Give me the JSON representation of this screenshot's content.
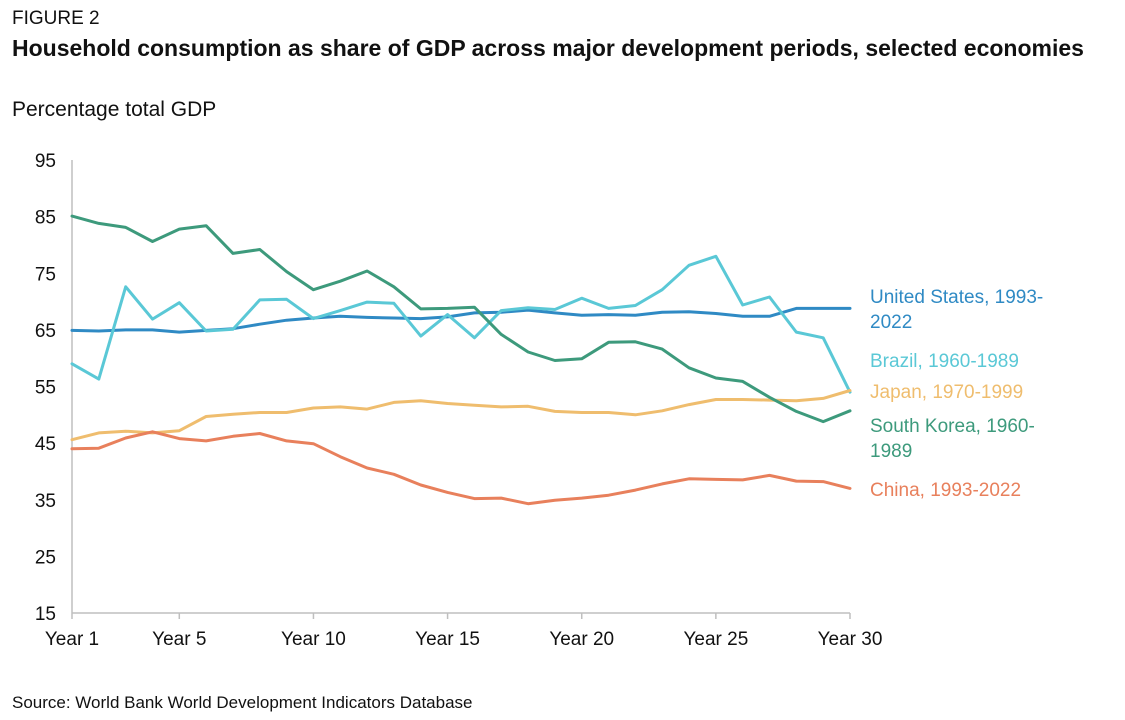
{
  "header": {
    "figure_label": "FIGURE 2",
    "title": "Household consumption as share of GDP across major development periods, selected economies",
    "subtitle": "Percentage total GDP"
  },
  "footer": {
    "source": "Source: World Bank World Development Indicators Database"
  },
  "chart_data": {
    "type": "line",
    "title": "Household consumption as share of GDP across major development periods, selected economies",
    "ylabel": "Percentage total GDP",
    "xlabel": "",
    "ylim": [
      15,
      95
    ],
    "yticks": [
      15,
      25,
      35,
      45,
      55,
      65,
      75,
      85,
      95
    ],
    "x": [
      1,
      2,
      3,
      4,
      5,
      6,
      7,
      8,
      9,
      10,
      11,
      12,
      13,
      14,
      15,
      16,
      17,
      18,
      19,
      20,
      21,
      22,
      23,
      24,
      25,
      26,
      27,
      28,
      29,
      30
    ],
    "xtick_values": [
      1,
      5,
      10,
      15,
      20,
      25,
      30
    ],
    "xtick_labels": [
      "Year 1",
      "Year 5",
      "Year 10",
      "Year 15",
      "Year 20",
      "Year 25",
      "Year 30"
    ],
    "grid": false,
    "legend": "direct labels at right end of lines",
    "series": [
      {
        "name": "United States, 1993-2022",
        "label_lines": [
          "United States, 1993-",
          "2022"
        ],
        "color": "#2f8ac4",
        "values": [
          64.9,
          64.8,
          65.0,
          65.0,
          64.6,
          64.9,
          65.2,
          66.0,
          66.7,
          67.1,
          67.4,
          67.2,
          67.1,
          67.0,
          67.3,
          68.0,
          68.1,
          68.5,
          68.0,
          67.6,
          67.7,
          67.6,
          68.1,
          68.2,
          67.9,
          67.4,
          67.4,
          68.8,
          68.8,
          68.8
        ]
      },
      {
        "name": "Brazil, 1960-1989",
        "label_lines": [
          "Brazil, 1960-1989"
        ],
        "color": "#5ac8d6",
        "values": [
          59.0,
          56.3,
          72.6,
          66.9,
          69.8,
          64.8,
          65.1,
          70.3,
          70.4,
          67.0,
          68.4,
          69.9,
          69.7,
          63.9,
          67.7,
          63.6,
          68.4,
          68.9,
          68.6,
          70.6,
          68.8,
          69.3,
          72.1,
          76.4,
          78.0,
          69.4,
          70.8,
          64.6,
          63.6,
          54.0
        ]
      },
      {
        "name": "Japan, 1970-1999",
        "label_lines": [
          "Japan, 1970-1999"
        ],
        "color": "#efbd6e",
        "values": [
          45.6,
          46.8,
          47.1,
          46.8,
          47.2,
          49.7,
          50.1,
          50.4,
          50.4,
          51.2,
          51.4,
          51.0,
          52.2,
          52.5,
          52.0,
          51.7,
          51.4,
          51.5,
          50.6,
          50.4,
          50.4,
          50.0,
          50.7,
          51.8,
          52.7,
          52.7,
          52.6,
          52.5,
          52.9,
          54.3
        ]
      },
      {
        "name": "South Korea, 1960-1989",
        "label_lines": [
          "South Korea, 1960-",
          "1989"
        ],
        "color": "#3d9a7c",
        "values": [
          85.1,
          83.8,
          83.1,
          80.6,
          82.8,
          83.4,
          78.5,
          79.2,
          75.3,
          72.1,
          73.6,
          75.4,
          72.6,
          68.7,
          68.8,
          69.0,
          64.2,
          61.1,
          59.6,
          59.9,
          62.8,
          62.9,
          61.6,
          58.3,
          56.5,
          55.9,
          53.1,
          50.6,
          48.8,
          50.7
        ]
      },
      {
        "name": "China, 1993-2022",
        "label_lines": [
          "China, 1993-2022"
        ],
        "color": "#e8805c",
        "values": [
          44.0,
          44.1,
          45.9,
          47.0,
          45.8,
          45.4,
          46.2,
          46.7,
          45.4,
          44.9,
          42.6,
          40.6,
          39.5,
          37.6,
          36.3,
          35.2,
          35.3,
          34.3,
          34.9,
          35.3,
          35.8,
          36.7,
          37.8,
          38.7,
          38.6,
          38.5,
          39.3,
          38.3,
          38.2,
          37.0
        ]
      }
    ]
  }
}
